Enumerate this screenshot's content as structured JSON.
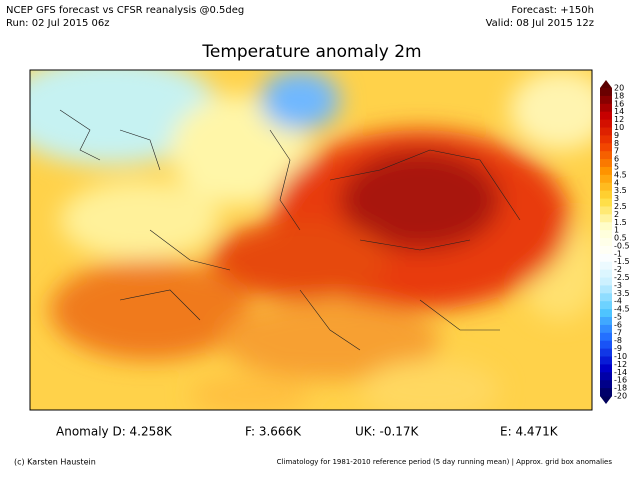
{
  "header": {
    "left": [
      "NCEP GFS forecast vs CFSR reanalysis @0.5deg",
      "Run: 02 Jul 2015 06z"
    ],
    "right": [
      "Forecast: +150h",
      "Valid: 08 Jul 2015 12z"
    ],
    "title": "Temperature anomaly 2m"
  },
  "colorbar": {
    "labels": [
      "20",
      "18",
      "16",
      "14",
      "12",
      "10",
      "9",
      "8",
      "7",
      "6",
      "5",
      "4.5",
      "4",
      "3.5",
      "3",
      "2.5",
      "2",
      "1.5",
      "1",
      "0.5",
      "-0.5",
      "-1",
      "-1.5",
      "-2",
      "-2.5",
      "-3",
      "-3.5",
      "-4",
      "-4.5",
      "-5",
      "-6",
      "-7",
      "-8",
      "-9",
      "-10",
      "-12",
      "-14",
      "-16",
      "-18",
      "-20"
    ]
  },
  "stats": [
    "Anomaly D: 4.258K",
    "F: 3.666K",
    "UK: -0.17K",
    "E: 4.471K"
  ],
  "footer": {
    "left": "(c) Karsten Haustein",
    "right": "Climatology for 1981-2010 reference period (5 day running mean) | Approx. grid box anomalies"
  }
}
